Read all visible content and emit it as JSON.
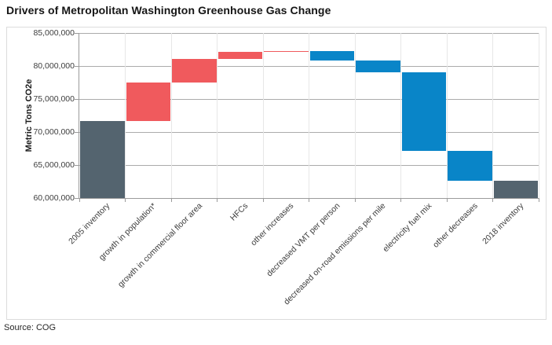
{
  "title": "Drivers of Metropolitan Washington Greenhouse Gas Change",
  "source_note": "Source: COG",
  "chart_data": {
    "type": "waterfall",
    "title": "Drivers of Metropolitan Washington Greenhouse Gas Change",
    "ylabel": "Metric Tons CO2e",
    "xlabel": "",
    "ylim": [
      60000000,
      85000000
    ],
    "ytick_interval": 5000000,
    "yticks": [
      85000000,
      80000000,
      75000000,
      70000000,
      65000000,
      60000000
    ],
    "ytick_labels": [
      "85,000,000",
      "80,000,000",
      "75,000,000",
      "70,000,000",
      "65,000,000",
      "60,000,000"
    ],
    "grid": true,
    "legend": "none",
    "categories": [
      "2005 inventory",
      "growth in population*",
      "growth in  commercial floor area",
      "HFCs",
      "other increases",
      "decreased VMT per person",
      "decreased on-road emissions per mile",
      "electricity fuel mix",
      "other decreases",
      "2018 inventory"
    ],
    "bars": [
      {
        "label": "2005 inventory",
        "kind": "total",
        "start": 60000000,
        "end": 71700000
      },
      {
        "label": "growth in population*",
        "kind": "increase",
        "start": 71700000,
        "end": 77500000
      },
      {
        "label": "growth in  commercial floor area",
        "kind": "increase",
        "start": 77500000,
        "end": 81100000
      },
      {
        "label": "HFCs",
        "kind": "increase",
        "start": 81100000,
        "end": 82100000
      },
      {
        "label": "other increases",
        "kind": "increase",
        "start": 82100000,
        "end": 82300000
      },
      {
        "label": "decreased VMT per person",
        "kind": "decrease",
        "start": 82300000,
        "end": 80800000
      },
      {
        "label": "decreased on-road emissions per mile",
        "kind": "decrease",
        "start": 80800000,
        "end": 79100000
      },
      {
        "label": "electricity fuel mix",
        "kind": "decrease",
        "start": 79100000,
        "end": 67100000
      },
      {
        "label": "other decreases",
        "kind": "decrease",
        "start": 67100000,
        "end": 62600000
      },
      {
        "label": "2018 inventory",
        "kind": "total",
        "start": 60000000,
        "end": 62600000
      }
    ],
    "colors": {
      "total": "#54646F",
      "increase": "#F05A5D",
      "decrease": "#0985C8"
    }
  }
}
